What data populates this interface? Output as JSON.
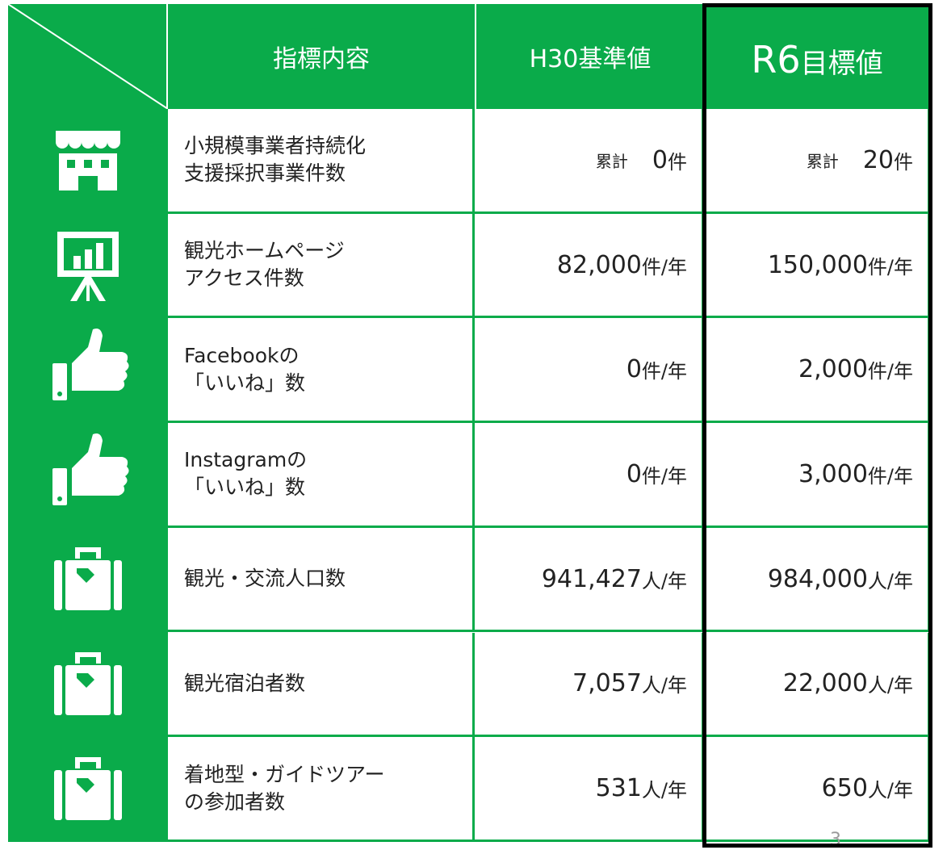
{
  "table": {
    "header": {
      "indicator": "指標内容",
      "baseline": "H30基準値",
      "target": {
        "main": "R6",
        "suffix": "目標値"
      }
    },
    "rows": [
      {
        "indicator": [
          "小規模事業者持続化",
          "支援採択事業件数"
        ],
        "baseline": {
          "prefix": "累計",
          "number": "0",
          "unit": "件"
        },
        "target": {
          "prefix": "累計",
          "number": "20",
          "unit": "件"
        }
      },
      {
        "indicator": [
          "観光ホームページ",
          "アクセス件数"
        ],
        "baseline": {
          "number": "82,000",
          "unit": "件/年"
        },
        "target": {
          "number": "150,000",
          "unit": "件/年"
        }
      },
      {
        "indicator": [
          "Facebookの",
          "「いいね」数"
        ],
        "baseline": {
          "number": "0",
          "unit": "件/年"
        },
        "target": {
          "number": "2,000",
          "unit": "件/年"
        }
      },
      {
        "indicator": [
          "Instagramの",
          "「いいね」数"
        ],
        "baseline": {
          "number": "0",
          "unit": "件/年"
        },
        "target": {
          "number": "3,000",
          "unit": "件/年"
        }
      },
      {
        "indicator": [
          "観光・交流人口数"
        ],
        "baseline": {
          "number": "941,427",
          "unit": "人/年"
        },
        "target": {
          "number": "984,000",
          "unit": "人/年"
        }
      },
      {
        "indicator": [
          "観光宿泊者数"
        ],
        "baseline": {
          "number": "7,057",
          "unit": "人/年"
        },
        "target": {
          "number": "22,000",
          "unit": "人/年"
        }
      },
      {
        "indicator": [
          "着地型・ガイドツアー",
          "の参加者数"
        ],
        "baseline": {
          "number": "531",
          "unit": "人/年"
        },
        "target": {
          "number": "650",
          "unit": "人/年"
        }
      }
    ]
  },
  "page_number": "3"
}
